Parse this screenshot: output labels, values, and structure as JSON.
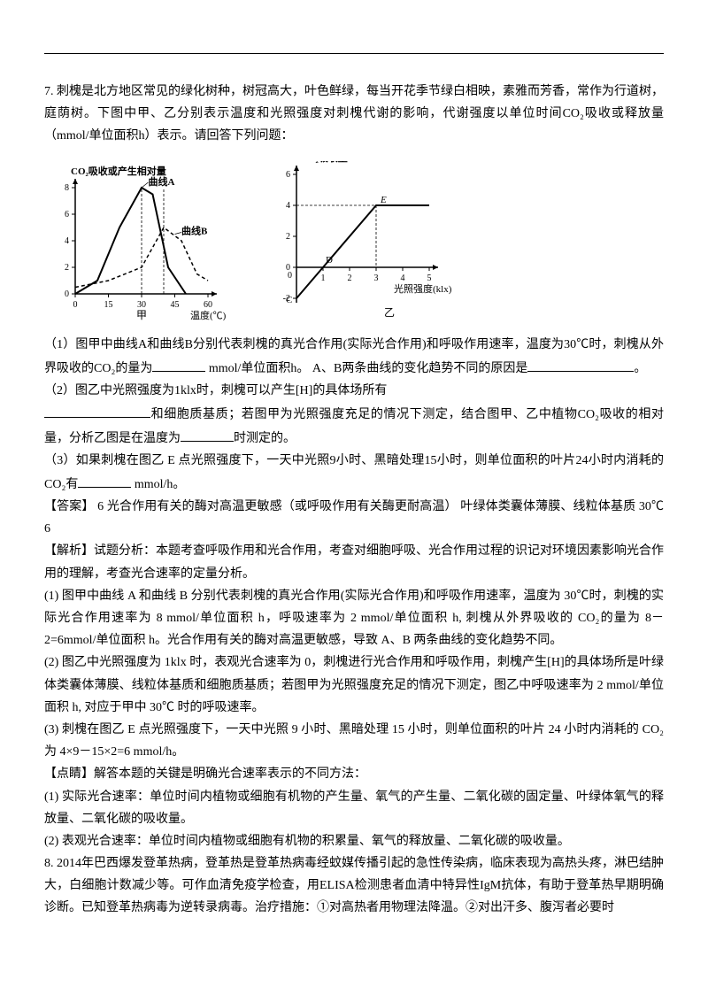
{
  "q7": {
    "intro": "7. 刺槐是北方地区常见的绿化树种，树冠高大，叶色鲜绿，每当开花季节绿白相映，素雅而芳香，常作为行道树，庭荫树。下图中甲、乙分别表示温度和光照强度对刺槐代谢的影响，代谢强度以单位时间CO₂吸收或释放量（mmol/单位面积h）表示。请回答下列问题：",
    "chart1": {
      "yLabel": "CO₂吸收或产生相对量",
      "xLabel": "温度(℃)",
      "label": "甲",
      "curveA": "曲线A",
      "curveB": "曲线B",
      "xTicks": [
        0,
        15,
        30,
        45,
        60
      ],
      "yTicks": [
        0,
        2,
        4,
        6,
        8
      ],
      "curveAData": [
        [
          0,
          0
        ],
        [
          10,
          1
        ],
        [
          20,
          5
        ],
        [
          30,
          8
        ],
        [
          35,
          7.5
        ],
        [
          42,
          2
        ],
        [
          50,
          0
        ]
      ],
      "curveBData": [
        [
          0,
          0.5
        ],
        [
          15,
          1
        ],
        [
          30,
          2
        ],
        [
          40,
          5
        ],
        [
          48,
          4
        ],
        [
          55,
          1.5
        ],
        [
          60,
          1
        ]
      ],
      "lineColor": "#000",
      "bgColor": "#fff"
    },
    "chart2": {
      "yLabel": "CO₂吸收量",
      "xLabel": "光照强度(klx)",
      "label": "乙",
      "xTicks": [
        0,
        1,
        2,
        3,
        4,
        5
      ],
      "yTicks": [
        -2,
        0,
        2,
        4,
        6
      ],
      "pointC": "C",
      "pointD": "D",
      "pointE": "E",
      "lineData": [
        [
          0,
          -2
        ],
        [
          1,
          0
        ],
        [
          3,
          4
        ],
        [
          5,
          4
        ]
      ],
      "lineColor": "#000",
      "bgColor": "#fff"
    },
    "p1a": "（1）图甲中曲线A和曲线B分别代表刺槐的真光合作用(实际光合作用)和呼吸作用速率，温度为30℃时，刺槐从外界吸收的CO₂的量为",
    "p1b": " mmol/单位面积h。 A、B两条曲线的变化趋势不同的原因是",
    "p1c": "。",
    "p2a": "（2）图乙中光照强度为1klx时，刺槐可以产生[H]的具体场所有",
    "p2b": "和细胞质基质；若图甲为光照强度充足的情况下测定，结合图甲、乙中植物CO₂吸收的相对量，分析乙图是在温度为",
    "p2c": "时测定的。",
    "p3a": "（3）如果刺槐在图乙 E 点光照强度下，一天中光照9小时、黑暗处理15小时，则单位面积的叶片24小时内消耗的CO₂有",
    "p3b": " mmol/h。",
    "answer": "【答案】  6   光合作用有关的酶对高温更敏感（或呼吸作用有关酶更耐高温）  叶绿体类囊体薄膜、线粒体基质   30℃   6",
    "explainTitle": "【解析】试题分析：本题考查呼吸作用和光合作用，考查对细胞呼吸、光合作用过程的识记对环境因素影响光合作用的理解，考查光合速率的定量分析。",
    "e1": "(1) 图甲中曲线 A 和曲线 B 分别代表刺槐的真光合作用(实际光合作用)和呼吸作用速率，温度为 30℃时，刺槐的实际光合作用速率为 8 mmol/单位面积 h，呼吸速率为 2       mmol/单位面积 h,  刺槐从外界吸收的 CO₂的量为 8－2=6mmol/单位面积 h。光合作用有关的酶对高温更敏感，导致 A、B 两条曲线的变化趋势不同。",
    "e2": "(2) 图乙中光照强度为 1klx 时，表观光合速率为 0，刺槐进行光合作用和呼吸作用，刺槐产生[H]的具体场所是叶绿体类囊体薄膜、线粒体基质和细胞质基质；若图甲为光照强度充足的情况下测定，图乙中呼吸速率为 2 mmol/单位面积 h, 对应于甲中 30℃ 时的呼吸速率。",
    "e3": "(3) 刺槐在图乙 E 点光照强度下，一天中光照 9 小时、黑暗处理 15 小时，则单位面积的叶片 24 小时内消耗的 CO₂为 4×9－15×2=6 mmol/h。",
    "tipTitle": "【点睛】解答本题的关键是明确光合速率表示的不同方法：",
    "tip1": "(1) 实际光合速率：单位时间内植物或细胞有机物的产生量、氧气的产生量、二氧化碳的固定量、叶绿体氧气的释放量、二氧化碳的吸收量。",
    "tip2": "(2) 表观光合速率：单位时间内植物或细胞有机物的积累量、氧气的释放量、二氧化碳的吸收量。"
  },
  "q8": {
    "text": "8.  2014年巴西爆发登革热病，登革热是登革热病毒经蚊媒传播引起的急性传染病，临床表现为高热头疼，淋巴结肿大，白细胞计数减少等。可作血清免疫学检查，用ELISA检测患者血清中特异性IgM抗体，有助于登革热早期明确诊断。已知登革热病毒为逆转录病毒。治疗措施：①对高热者用物理法降温。②对出汗多、腹泻者必要时"
  }
}
